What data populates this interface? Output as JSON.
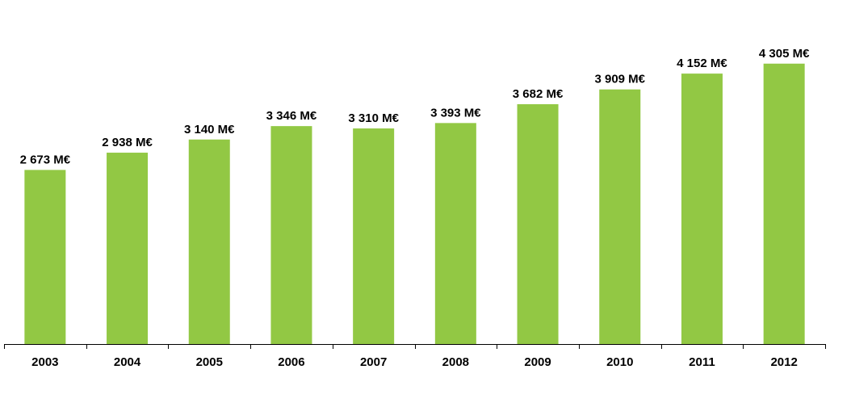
{
  "chart_data": {
    "type": "bar",
    "categories": [
      "2003",
      "2004",
      "2005",
      "2006",
      "2007",
      "2008",
      "2009",
      "2010",
      "2011",
      "2012"
    ],
    "values": [
      2673,
      2938,
      3140,
      3346,
      3310,
      3393,
      3682,
      3909,
      4152,
      4305
    ],
    "data_labels": [
      "2 673 M€",
      "2 938 M€",
      "3 140 M€",
      "3 346 M€",
      "3 310 M€",
      "3 393 M€",
      "3 682 M€",
      "3 909 M€",
      "4 152 M€",
      "4 305 M€"
    ],
    "bar_color": "#92c844",
    "title": "",
    "xlabel": "",
    "ylabel": "",
    "ylim": [
      0,
      4600
    ],
    "grid": false,
    "legend": "none"
  }
}
